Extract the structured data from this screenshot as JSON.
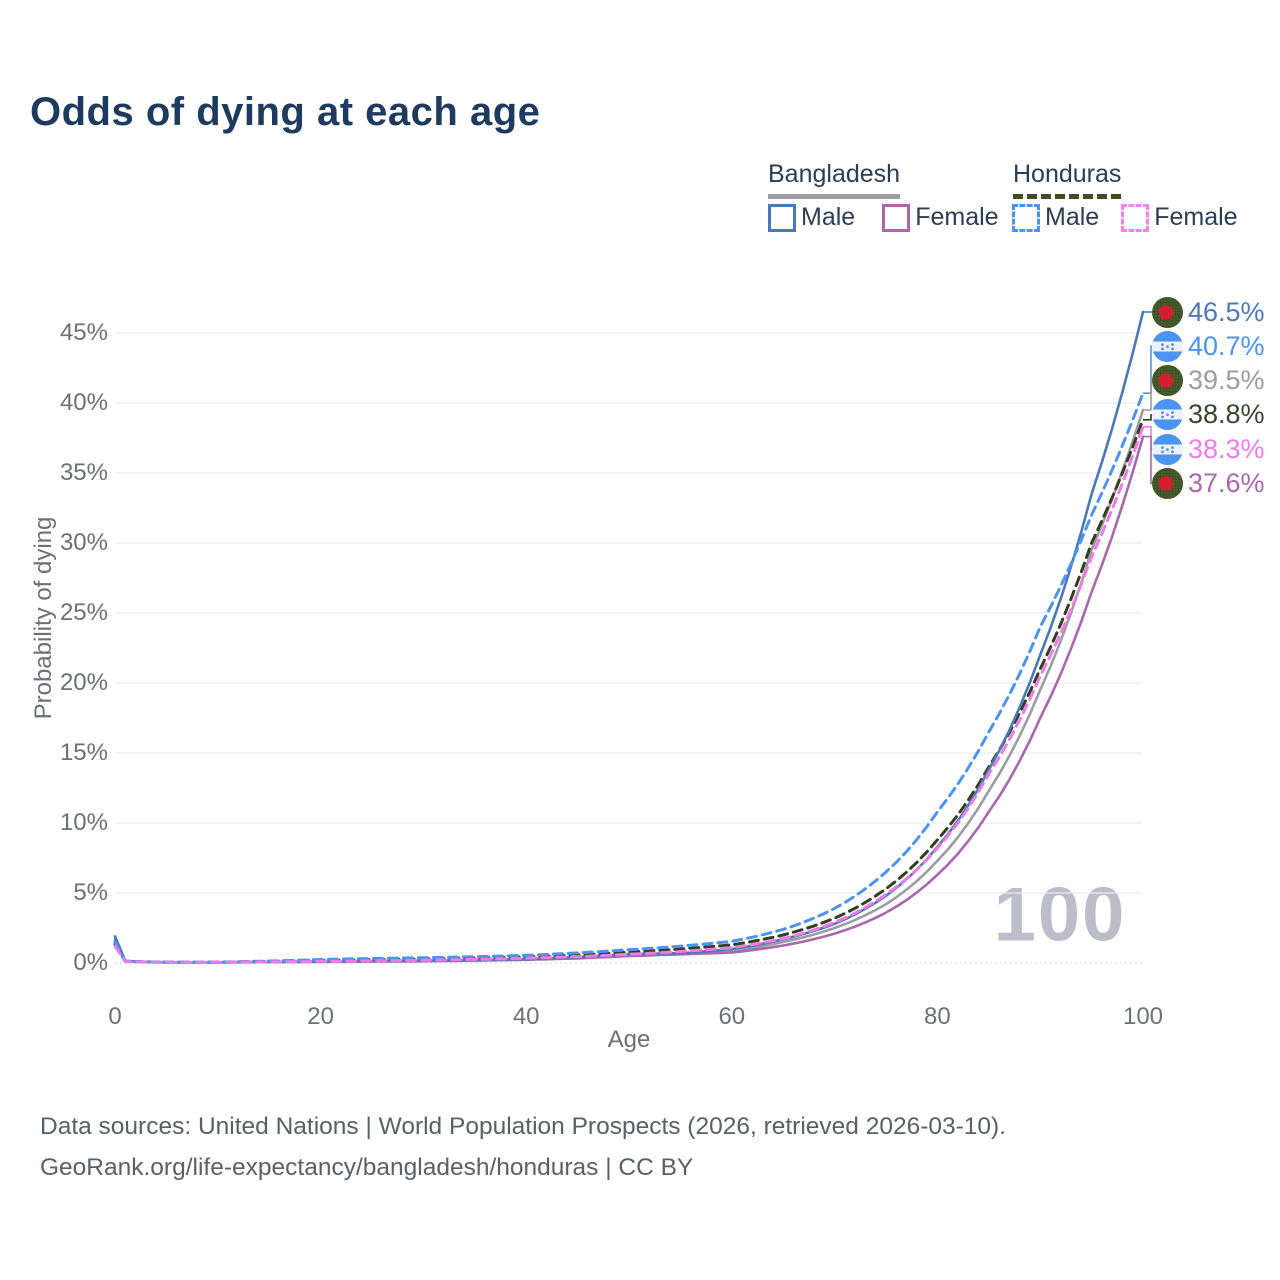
{
  "title": "Odds of dying at each age",
  "watermark": "100",
  "legend": {
    "groups": [
      {
        "country": "Bangladesh",
        "underline_color": "#9e9ea3",
        "underline_style": "solid",
        "items": [
          {
            "label": "Male",
            "color": "#4b79b7",
            "style": "solid"
          },
          {
            "label": "Female",
            "color": "#a868ad",
            "style": "solid"
          }
        ]
      },
      {
        "country": "Honduras",
        "underline_color": "#3e4f26",
        "underline_style": "dashed",
        "items": [
          {
            "label": "Male",
            "color": "#4d94f2",
            "style": "dashed"
          },
          {
            "label": "Female",
            "color": "#f884ea",
            "style": "dashed"
          }
        ]
      }
    ]
  },
  "footer": {
    "line1": "Data sources: United Nations | World Population Prospects (2026, retrieved 2026-03-10).",
    "line2": "GeoRank.org/life-expectancy/bangladesh/honduras | CC BY"
  },
  "chart_data": {
    "type": "line",
    "title": "Odds of dying at each age",
    "xlabel": "Age",
    "ylabel": "Probability of dying",
    "xlim": [
      0,
      100
    ],
    "ylim_percent": [
      0,
      47
    ],
    "grid": "horizontal",
    "legend_position": "top-right",
    "xticks": [
      0,
      20,
      40,
      60,
      80,
      100
    ],
    "yticks": [
      "0%",
      "5%",
      "10%",
      "15%",
      "20%",
      "25%",
      "30%",
      "35%",
      "40%",
      "45%"
    ],
    "x": [
      0,
      1,
      5,
      10,
      15,
      20,
      25,
      30,
      35,
      40,
      45,
      50,
      55,
      60,
      65,
      70,
      75,
      80,
      85,
      90,
      95,
      100
    ],
    "series": [
      {
        "name": "Bangladesh Male",
        "country": "bangladesh",
        "sex": "male",
        "color": "#4b79b7",
        "dash": "solid",
        "end_label": "46.5%",
        "end_value_percent": 46.5,
        "values_percent": [
          1.9,
          0.15,
          0.05,
          0.05,
          0.08,
          0.11,
          0.14,
          0.17,
          0.21,
          0.28,
          0.42,
          0.65,
          0.7,
          1.0,
          1.7,
          2.8,
          4.8,
          8.3,
          13.8,
          22.0,
          33.5,
          46.5
        ]
      },
      {
        "name": "Honduras Male",
        "country": "honduras",
        "sex": "male",
        "color": "#4d94f2",
        "dash": "dashed",
        "end_label": "40.7%",
        "end_value_percent": 40.7,
        "values_percent": [
          1.5,
          0.12,
          0.06,
          0.07,
          0.14,
          0.25,
          0.32,
          0.38,
          0.45,
          0.55,
          0.72,
          0.95,
          1.2,
          1.55,
          2.4,
          3.9,
          6.5,
          10.8,
          16.5,
          24.0,
          32.0,
          40.7
        ]
      },
      {
        "name": "Bangladesh Both sexes",
        "country": "bangladesh",
        "sex": "both",
        "color": "#9c9ca2",
        "dash": "solid",
        "end_label": "39.5%",
        "end_value_percent": 39.5,
        "values_percent": [
          1.75,
          0.14,
          0.05,
          0.05,
          0.07,
          0.1,
          0.12,
          0.15,
          0.19,
          0.25,
          0.37,
          0.57,
          0.66,
          0.88,
          1.5,
          2.5,
          4.2,
          7.3,
          12.3,
          19.5,
          29.5,
          39.5
        ]
      },
      {
        "name": "Honduras Both sexes",
        "country": "honduras",
        "sex": "both",
        "color": "#333f1d",
        "dash": "dashed",
        "end_label": "38.8%",
        "end_value_percent": 38.8,
        "values_percent": [
          1.35,
          0.11,
          0.05,
          0.06,
          0.11,
          0.18,
          0.24,
          0.29,
          0.35,
          0.44,
          0.58,
          0.78,
          1.0,
          1.3,
          2.0,
          3.2,
          5.3,
          8.8,
          14.0,
          21.0,
          30.0,
          38.8
        ]
      },
      {
        "name": "Honduras Female",
        "country": "honduras",
        "sex": "female",
        "color": "#ef7ce6",
        "dash": "dashed",
        "end_label": "38.3%",
        "end_value_percent": 38.3,
        "values_percent": [
          1.2,
          0.1,
          0.04,
          0.05,
          0.08,
          0.12,
          0.15,
          0.2,
          0.26,
          0.34,
          0.46,
          0.62,
          0.82,
          1.1,
          1.75,
          2.9,
          4.9,
          8.2,
          13.5,
          20.5,
          29.0,
          38.3
        ]
      },
      {
        "name": "Bangladesh Female",
        "country": "bangladesh",
        "sex": "female",
        "color": "#a868ad",
        "dash": "solid",
        "end_label": "37.6%",
        "end_value_percent": 37.6,
        "values_percent": [
          1.6,
          0.13,
          0.04,
          0.04,
          0.06,
          0.08,
          0.1,
          0.13,
          0.17,
          0.23,
          0.33,
          0.5,
          0.62,
          0.75,
          1.25,
          2.1,
          3.6,
          6.3,
          10.8,
          17.5,
          26.5,
          37.6
        ]
      }
    ]
  }
}
